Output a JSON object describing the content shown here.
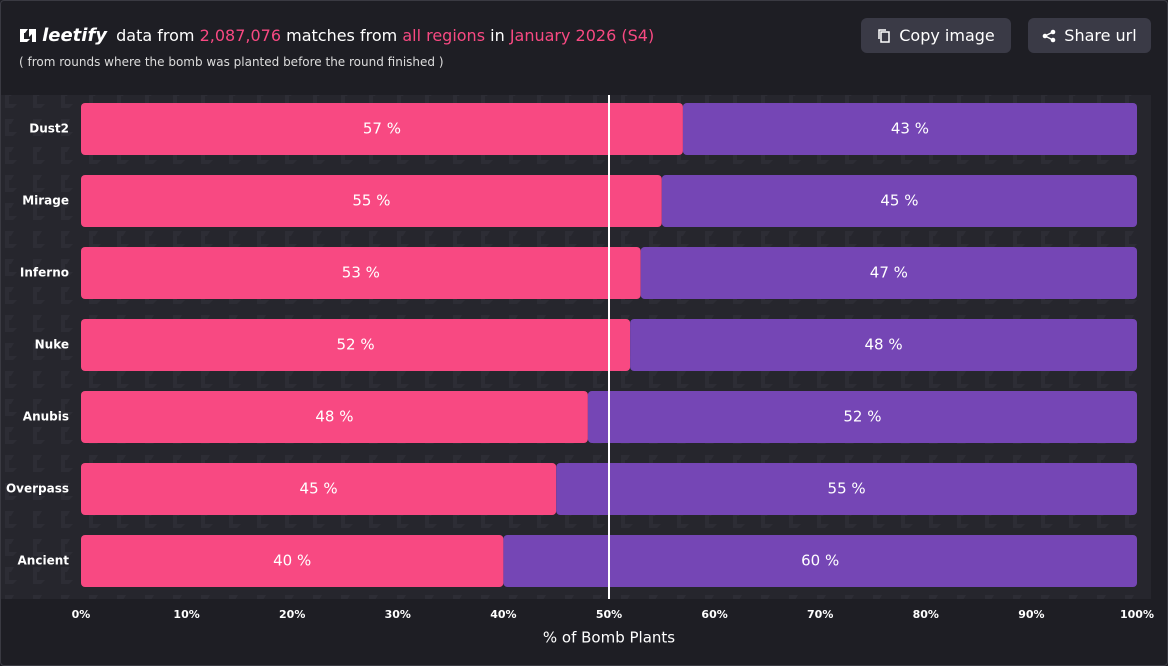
{
  "header": {
    "brand": "leetify",
    "parts": [
      "data from",
      "2,087,076",
      "matches from",
      "all regions",
      "in",
      "January 2026 (S4)"
    ],
    "subtitle": "( from rounds where the bomb was planted before the round finished )"
  },
  "buttons": [
    "Copy image",
    "Share url"
  ],
  "chart_data": {
    "type": "stacked-barh",
    "categories": [
      "Dust2",
      "Mirage",
      "Inferno",
      "Nuke",
      "Anubis",
      "Overpass",
      "Ancient"
    ],
    "series": [
      {
        "color": "#f84982",
        "values": [
          57,
          55,
          53,
          52,
          48,
          45,
          40
        ],
        "value_labels": [
          "57 %",
          "55 %",
          "53 %",
          "52 %",
          "48 %",
          "45 %",
          "40 %"
        ]
      },
      {
        "color": "#7546b5",
        "values": [
          43,
          45,
          47,
          48,
          52,
          55,
          60
        ],
        "value_labels": [
          "43 %",
          "45 %",
          "47 %",
          "48 %",
          "52 %",
          "55 %",
          "60 %"
        ]
      }
    ],
    "xlim": [
      0,
      100
    ],
    "xticks": [
      {
        "value": 0,
        "label": "0%"
      },
      {
        "value": 10,
        "label": "10%"
      },
      {
        "value": 20,
        "label": "20%"
      },
      {
        "value": 30,
        "label": "30%"
      },
      {
        "value": 40,
        "label": "40%"
      },
      {
        "value": 50,
        "label": "50%"
      },
      {
        "value": 60,
        "label": "60%"
      },
      {
        "value": 70,
        "label": "70%"
      },
      {
        "value": 80,
        "label": "80%"
      },
      {
        "value": 90,
        "label": "90%"
      },
      {
        "value": 100,
        "label": "100%"
      }
    ],
    "xlabel": "% of Bomb Plants",
    "reference_line": 50
  }
}
